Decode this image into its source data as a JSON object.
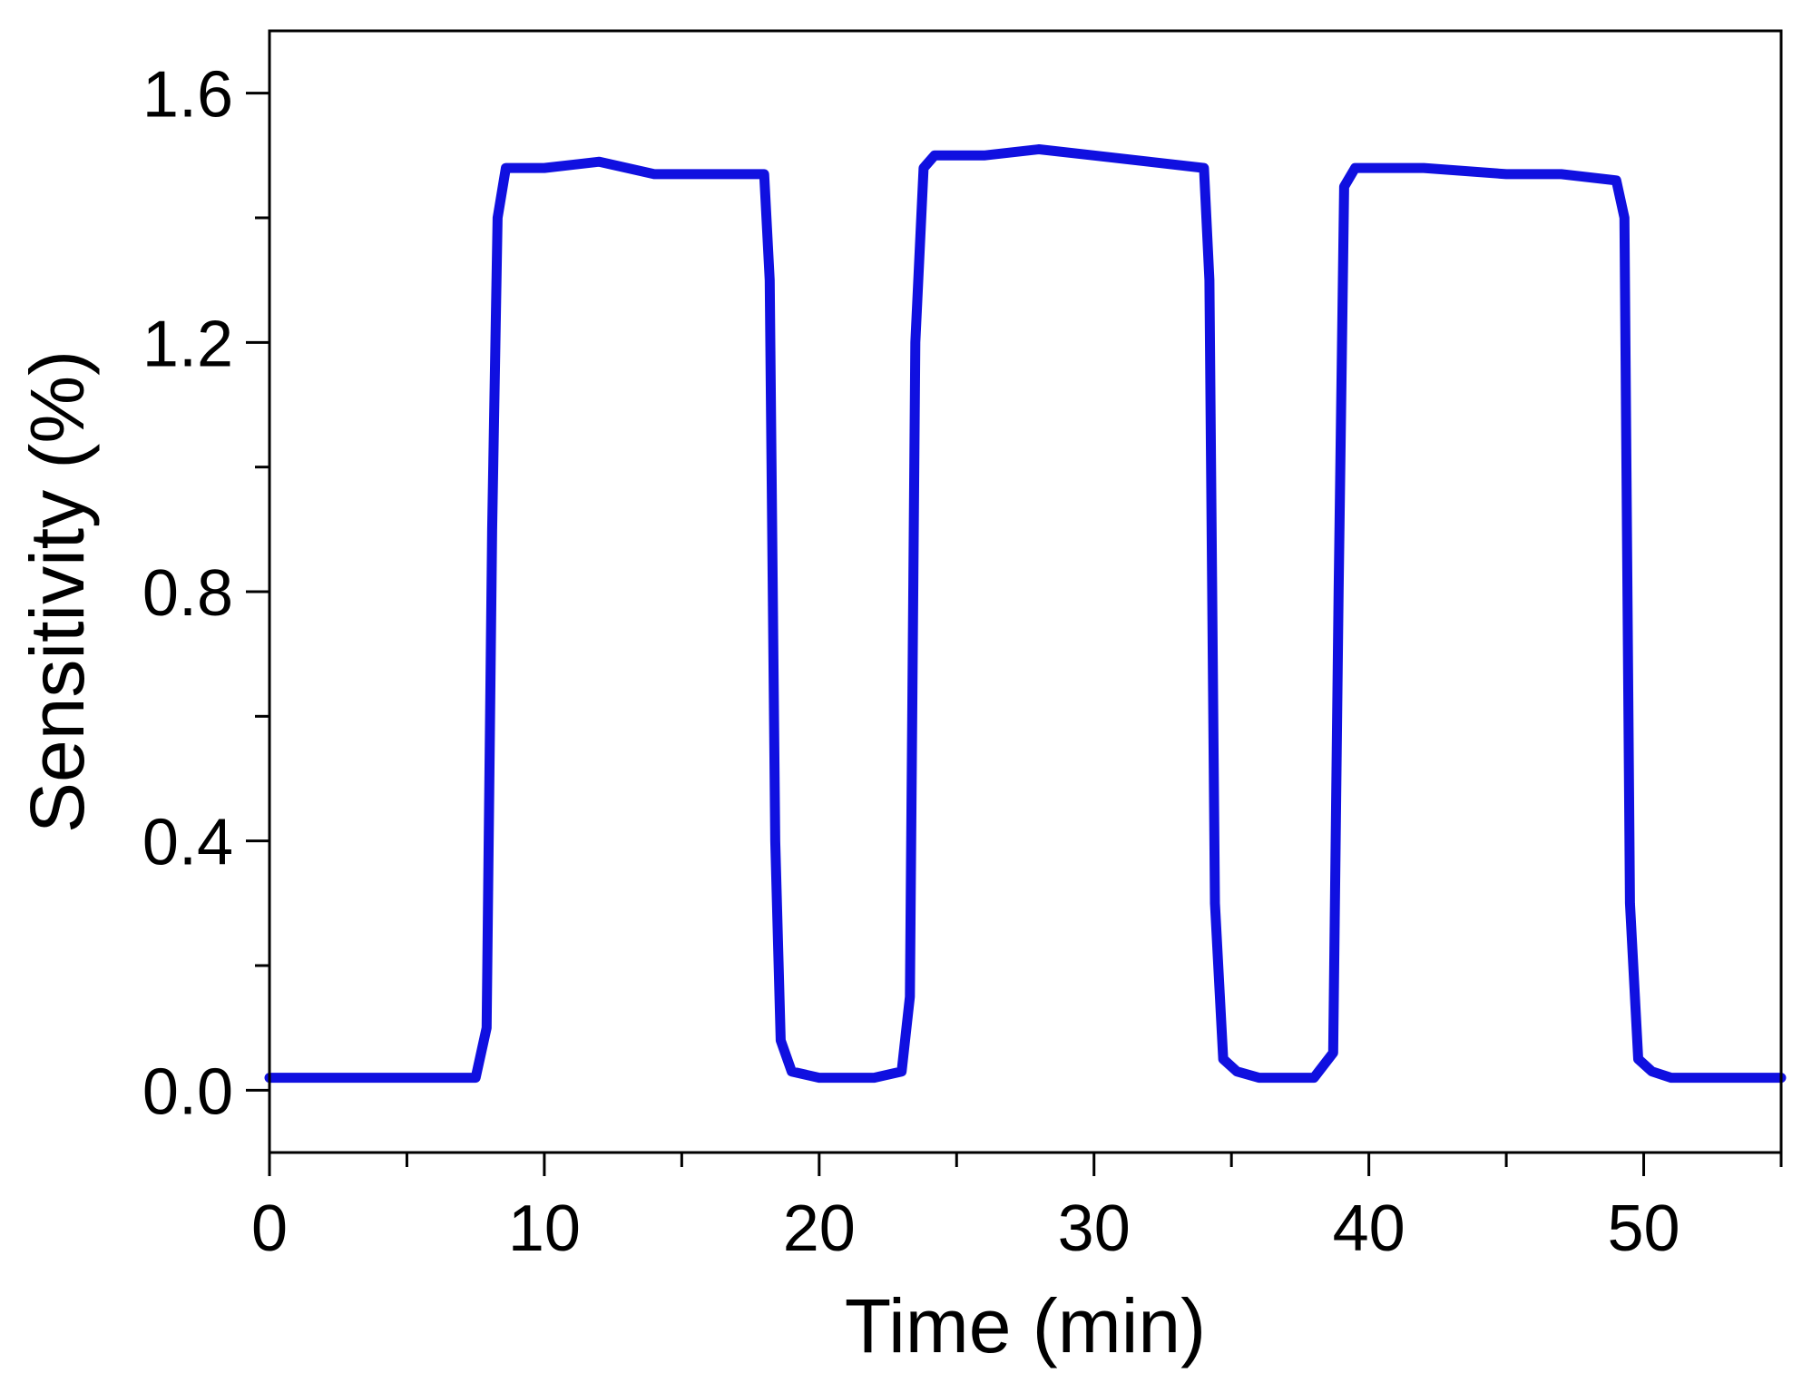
{
  "chart_data": {
    "type": "line",
    "title": "",
    "xlabel": "Time (min)",
    "ylabel": "Sensitivity (%)",
    "xlim": [
      0,
      55
    ],
    "ylim": [
      -0.1,
      1.7
    ],
    "x_ticks": [
      0,
      10,
      20,
      30,
      40,
      50
    ],
    "x_tick_labels": [
      "0",
      "10",
      "20",
      "30",
      "40",
      "50"
    ],
    "x_minor_ticks": [
      5,
      15,
      25,
      35,
      45,
      55
    ],
    "y_ticks": [
      0.0,
      0.4,
      0.8,
      1.2,
      1.6
    ],
    "y_tick_labels": [
      "0.0",
      "0.4",
      "0.8",
      "1.2",
      "1.6"
    ],
    "y_minor_ticks": [
      0.2,
      0.6,
      1.0,
      1.4
    ],
    "grid": false,
    "legend": "none",
    "series": [
      {
        "color": "#1010e0",
        "x": [
          0,
          2,
          4,
          6,
          7.5,
          7.9,
          8.1,
          8.3,
          8.6,
          10,
          12,
          14,
          16,
          18,
          18.2,
          18.4,
          18.6,
          19,
          20,
          22,
          23,
          23.3,
          23.5,
          23.8,
          24.2,
          26,
          28,
          30,
          32,
          34,
          34.2,
          34.4,
          34.7,
          35.2,
          36,
          38,
          38.7,
          38.9,
          39.1,
          39.5,
          42,
          45,
          47,
          49,
          49.3,
          49.5,
          49.8,
          50.3,
          51,
          53,
          55
        ],
        "y": [
          0.02,
          0.02,
          0.02,
          0.02,
          0.02,
          0.1,
          0.9,
          1.4,
          1.48,
          1.48,
          1.49,
          1.47,
          1.47,
          1.47,
          1.3,
          0.4,
          0.08,
          0.03,
          0.02,
          0.02,
          0.03,
          0.15,
          1.2,
          1.48,
          1.5,
          1.5,
          1.51,
          1.5,
          1.49,
          1.48,
          1.3,
          0.3,
          0.05,
          0.03,
          0.02,
          0.02,
          0.06,
          0.8,
          1.45,
          1.48,
          1.48,
          1.47,
          1.47,
          1.46,
          1.4,
          0.3,
          0.05,
          0.03,
          0.02,
          0.02,
          0.02
        ]
      }
    ]
  }
}
